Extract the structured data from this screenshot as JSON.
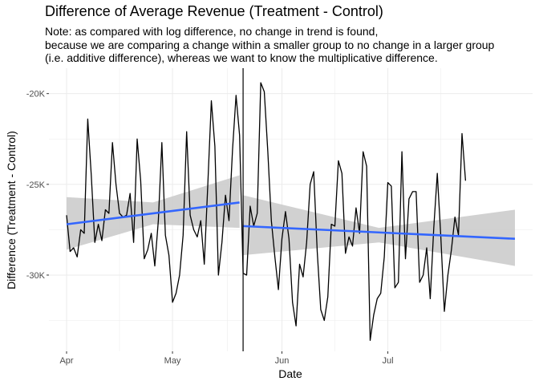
{
  "chart_data": {
    "type": "line",
    "title": "Difference of Average Revenue (Treatment - Control)",
    "subtitle_lines": [
      "Note: as compared with log difference, no change in trend is found,",
      "because we are comparing a change within a smaller group to no change in a larger group",
      "(i.e. additive difference), whereas we want to know the multiplicative difference."
    ],
    "xlabel": "Date",
    "ylabel": "Difference (Treatment - Control)",
    "x_ticks": [
      {
        "date": "2021-04-01",
        "label": "Apr"
      },
      {
        "date": "2021-05-01",
        "label": "May"
      },
      {
        "date": "2021-06-01",
        "label": "Jun"
      },
      {
        "date": "2021-07-01",
        "label": "Jul"
      }
    ],
    "y_ticks": [
      {
        "value": -20000,
        "label": "-20K"
      },
      {
        "value": -25000,
        "label": "-25K"
      },
      {
        "value": -30000,
        "label": "-30K"
      }
    ],
    "xlim": [
      "2021-03-27",
      "2021-08-11"
    ],
    "ylim": [
      -34200,
      -18600
    ],
    "grid": true,
    "intervention_date": "2021-05-21",
    "series": [
      {
        "start_date": "2021-04-01",
        "color": "#000000",
        "values": [
          -26700,
          -28700,
          -28500,
          -29000,
          -27500,
          -27700,
          -21400,
          -24500,
          -28200,
          -27200,
          -28100,
          -26400,
          -26600,
          -22700,
          -25000,
          -26600,
          -26800,
          -26700,
          -25500,
          -28200,
          -22500,
          -24800,
          -29100,
          -28600,
          -27700,
          -29500,
          -27000,
          -22700,
          -27800,
          -28900,
          -31500,
          -31000,
          -30000,
          -27800,
          -22100,
          -26700,
          -27500,
          -27900,
          -27000,
          -29400,
          -25000,
          -20400,
          -22900,
          -30000,
          -28200,
          -25600,
          -27000,
          -23100,
          -20100,
          -22300,
          -29900,
          -30000,
          -26200,
          -27300,
          -26600,
          -19400,
          -19900,
          -23200,
          -27000,
          -29000,
          -30800,
          -28000,
          -26500,
          -28000,
          -31500,
          -32800,
          -29400,
          -30100,
          -28200,
          -25000,
          -24300,
          -28700,
          -31900,
          -32500,
          -31200,
          -27200,
          -27300,
          -23700,
          -24400,
          -28800,
          -27900,
          -28400,
          -26300,
          -27700,
          -23200,
          -24000,
          -33600,
          -32200,
          -31300,
          -31000,
          -29000,
          -24900,
          -25100,
          -30700,
          -30400,
          -23200,
          -29100,
          -25800,
          -25400,
          -25400,
          -30400,
          -30000,
          -28500,
          -31300,
          -27400,
          -24400,
          -27900,
          -32000,
          -30000,
          -28600,
          -26800,
          -27800,
          -22200,
          -24800
        ]
      }
    ],
    "trend_segments": [
      {
        "start_date": "2021-04-01",
        "end_date": "2021-05-20",
        "start_value": -27200,
        "end_value": -26000,
        "band_start": [
          -28600,
          -25700
        ],
        "band_mid": [
          -27200,
          -26000
        ],
        "band_end": [
          -27400,
          -24500
        ],
        "color": "#3366ff"
      },
      {
        "start_date": "2021-05-21",
        "end_date": "2021-08-06",
        "start_value": -27300,
        "end_value": -28000,
        "band_start": [
          -28900,
          -25600
        ],
        "band_mid": [
          -28200,
          -27400
        ],
        "band_end": [
          -29500,
          -26400
        ],
        "color": "#3366ff"
      }
    ],
    "band_color": "#cccccc"
  }
}
